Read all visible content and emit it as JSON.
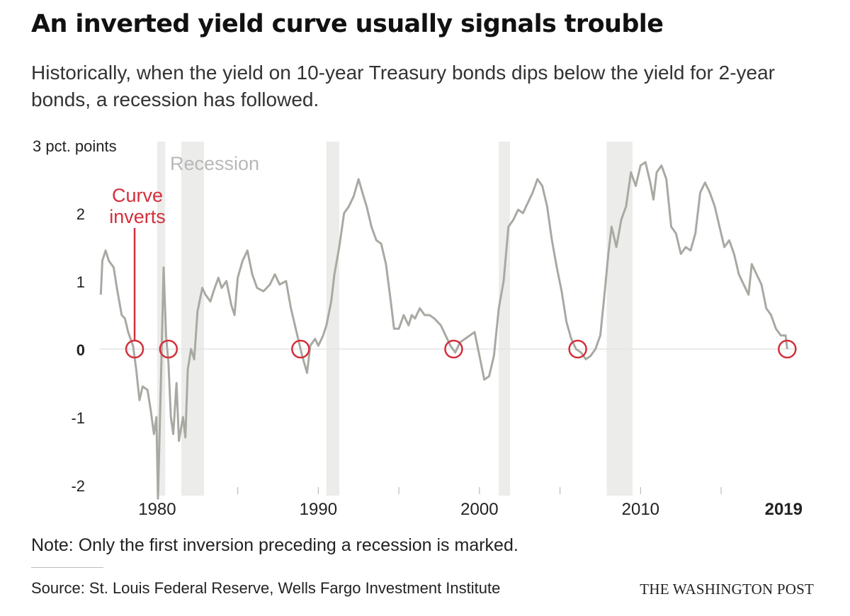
{
  "header": {
    "title": "An inverted yield curve usually signals trouble",
    "subtitle": "Historically, when the yield on 10-year Treasury bonds dips below the yield for 2-year bonds, a recession has followed."
  },
  "footer": {
    "note": "Note: Only the first inversion preceding a recession is marked.",
    "source": "Source: St. Louis Federal Reserve, Wells Fargo Investment Institute",
    "credit": "THE WASHINGTON POST"
  },
  "colors": {
    "line": "#a9a9a3",
    "recession": "#ececea",
    "accent": "#d3303b",
    "zero": "#e4e4e4"
  },
  "chart_data": {
    "type": "line",
    "title": "An inverted yield curve usually signals trouble",
    "subtitle": "Historically, when the yield on 10-year Treasury bonds dips below the yield for 2-year bonds, a recession has followed.",
    "ylabel": "3 pct. points",
    "xlim": [
      1976.4,
      2019.7
    ],
    "ylim": [
      -2.2,
      3
    ],
    "y_ticks": [
      {
        "value": 3,
        "label": "3 pct. points",
        "bold": false
      },
      {
        "value": 2,
        "label": "2",
        "bold": false
      },
      {
        "value": 1,
        "label": "1",
        "bold": false
      },
      {
        "value": 0,
        "label": "0",
        "bold": true
      },
      {
        "value": -1,
        "label": "-1",
        "bold": false
      },
      {
        "value": -2,
        "label": "-2",
        "bold": false
      }
    ],
    "x_labels": [
      {
        "value": 1980,
        "label": "1980",
        "bold": false
      },
      {
        "value": 1990,
        "label": "1990",
        "bold": false
      },
      {
        "value": 2000,
        "label": "2000",
        "bold": false
      },
      {
        "value": 2010,
        "label": "2010",
        "bold": false
      },
      {
        "value": 2019,
        "label": "2019",
        "bold": true
      }
    ],
    "x_minor_ticks": [
      1985,
      1995,
      2005,
      2015
    ],
    "recession_label": "Recession",
    "recessions": [
      [
        1980.0,
        1980.5
      ],
      [
        1981.5,
        1982.9
      ],
      [
        1990.5,
        1991.3
      ],
      [
        2001.2,
        2001.9
      ],
      [
        2007.9,
        2009.5
      ]
    ],
    "inversion_label": "Curve inverts",
    "inversions": [
      1978.6,
      1980.7,
      1988.9,
      1998.4,
      2006.1,
      2019.1
    ],
    "series": [
      {
        "values": [
          [
            1976.5,
            0.8
          ],
          [
            1976.6,
            1.3
          ],
          [
            1976.8,
            1.45
          ],
          [
            1977.0,
            1.3
          ],
          [
            1977.3,
            1.2
          ],
          [
            1977.5,
            0.9
          ],
          [
            1977.8,
            0.5
          ],
          [
            1978.0,
            0.45
          ],
          [
            1978.2,
            0.25
          ],
          [
            1978.5,
            0.05
          ],
          [
            1978.7,
            -0.3
          ],
          [
            1978.9,
            -0.75
          ],
          [
            1979.1,
            -0.55
          ],
          [
            1979.4,
            -0.6
          ],
          [
            1979.6,
            -0.9
          ],
          [
            1979.8,
            -1.25
          ],
          [
            1979.95,
            -1.0
          ],
          [
            1980.05,
            -2.2
          ],
          [
            1980.25,
            -0.3
          ],
          [
            1980.4,
            1.2
          ],
          [
            1980.55,
            0.2
          ],
          [
            1980.7,
            -0.2
          ],
          [
            1980.85,
            -1.0
          ],
          [
            1981.0,
            -1.25
          ],
          [
            1981.2,
            -0.5
          ],
          [
            1981.35,
            -1.35
          ],
          [
            1981.6,
            -1.0
          ],
          [
            1981.75,
            -1.3
          ],
          [
            1981.9,
            -0.3
          ],
          [
            1982.1,
            0.0
          ],
          [
            1982.3,
            -0.15
          ],
          [
            1982.5,
            0.55
          ],
          [
            1982.8,
            0.9
          ],
          [
            1983.0,
            0.8
          ],
          [
            1983.3,
            0.7
          ],
          [
            1983.5,
            0.85
          ],
          [
            1983.8,
            1.05
          ],
          [
            1984.0,
            0.9
          ],
          [
            1984.3,
            1.0
          ],
          [
            1984.6,
            0.65
          ],
          [
            1984.8,
            0.5
          ],
          [
            1985.0,
            1.05
          ],
          [
            1985.3,
            1.3
          ],
          [
            1985.6,
            1.45
          ],
          [
            1985.9,
            1.1
          ],
          [
            1986.2,
            0.9
          ],
          [
            1986.6,
            0.85
          ],
          [
            1987.0,
            0.95
          ],
          [
            1987.3,
            1.1
          ],
          [
            1987.6,
            0.95
          ],
          [
            1988.0,
            1.0
          ],
          [
            1988.3,
            0.6
          ],
          [
            1988.6,
            0.3
          ],
          [
            1989.0,
            -0.1
          ],
          [
            1989.3,
            -0.35
          ],
          [
            1989.5,
            0.05
          ],
          [
            1989.8,
            0.15
          ],
          [
            1990.0,
            0.05
          ],
          [
            1990.3,
            0.2
          ],
          [
            1990.5,
            0.35
          ],
          [
            1990.8,
            0.7
          ],
          [
            1991.0,
            1.1
          ],
          [
            1991.3,
            1.5
          ],
          [
            1991.6,
            2.0
          ],
          [
            1991.9,
            2.1
          ],
          [
            1992.2,
            2.25
          ],
          [
            1992.5,
            2.5
          ],
          [
            1992.8,
            2.25
          ],
          [
            1993.0,
            2.1
          ],
          [
            1993.3,
            1.8
          ],
          [
            1993.6,
            1.6
          ],
          [
            1993.9,
            1.55
          ],
          [
            1994.2,
            1.25
          ],
          [
            1994.5,
            0.7
          ],
          [
            1994.7,
            0.3
          ],
          [
            1995.0,
            0.3
          ],
          [
            1995.3,
            0.5
          ],
          [
            1995.6,
            0.35
          ],
          [
            1995.8,
            0.5
          ],
          [
            1996.0,
            0.45
          ],
          [
            1996.3,
            0.6
          ],
          [
            1996.6,
            0.5
          ],
          [
            1996.9,
            0.5
          ],
          [
            1997.2,
            0.45
          ],
          [
            1997.6,
            0.35
          ],
          [
            1997.9,
            0.2
          ],
          [
            1998.2,
            0.05
          ],
          [
            1998.5,
            -0.05
          ],
          [
            1998.8,
            0.1
          ],
          [
            1999.1,
            0.15
          ],
          [
            1999.4,
            0.2
          ],
          [
            1999.7,
            0.25
          ],
          [
            2000.0,
            -0.1
          ],
          [
            2000.3,
            -0.45
          ],
          [
            2000.6,
            -0.4
          ],
          [
            2000.9,
            -0.1
          ],
          [
            2001.2,
            0.6
          ],
          [
            2001.5,
            1.0
          ],
          [
            2001.8,
            1.8
          ],
          [
            2002.1,
            1.9
          ],
          [
            2002.4,
            2.05
          ],
          [
            2002.7,
            2.0
          ],
          [
            2003.0,
            2.15
          ],
          [
            2003.3,
            2.3
          ],
          [
            2003.6,
            2.5
          ],
          [
            2003.9,
            2.4
          ],
          [
            2004.2,
            2.1
          ],
          [
            2004.5,
            1.6
          ],
          [
            2004.8,
            1.2
          ],
          [
            2005.1,
            0.85
          ],
          [
            2005.4,
            0.4
          ],
          [
            2005.7,
            0.15
          ],
          [
            2006.0,
            0.0
          ],
          [
            2006.3,
            -0.05
          ],
          [
            2006.6,
            -0.15
          ],
          [
            2006.9,
            -0.1
          ],
          [
            2007.2,
            0.0
          ],
          [
            2007.5,
            0.2
          ],
          [
            2007.8,
            0.9
          ],
          [
            2008.0,
            1.4
          ],
          [
            2008.2,
            1.8
          ],
          [
            2008.5,
            1.5
          ],
          [
            2008.8,
            1.9
          ],
          [
            2009.1,
            2.1
          ],
          [
            2009.4,
            2.6
          ],
          [
            2009.7,
            2.4
          ],
          [
            2010.0,
            2.7
          ],
          [
            2010.3,
            2.75
          ],
          [
            2010.6,
            2.45
          ],
          [
            2010.8,
            2.2
          ],
          [
            2011.0,
            2.6
          ],
          [
            2011.3,
            2.7
          ],
          [
            2011.6,
            2.5
          ],
          [
            2011.9,
            1.8
          ],
          [
            2012.2,
            1.7
          ],
          [
            2012.5,
            1.4
          ],
          [
            2012.8,
            1.5
          ],
          [
            2013.1,
            1.45
          ],
          [
            2013.4,
            1.7
          ],
          [
            2013.7,
            2.3
          ],
          [
            2014.0,
            2.45
          ],
          [
            2014.3,
            2.3
          ],
          [
            2014.6,
            2.1
          ],
          [
            2014.9,
            1.8
          ],
          [
            2015.2,
            1.5
          ],
          [
            2015.5,
            1.6
          ],
          [
            2015.8,
            1.4
          ],
          [
            2016.1,
            1.1
          ],
          [
            2016.4,
            0.95
          ],
          [
            2016.7,
            0.8
          ],
          [
            2016.9,
            1.25
          ],
          [
            2017.2,
            1.1
          ],
          [
            2017.5,
            0.95
          ],
          [
            2017.8,
            0.6
          ],
          [
            2018.1,
            0.5
          ],
          [
            2018.4,
            0.3
          ],
          [
            2018.7,
            0.2
          ],
          [
            2019.0,
            0.2
          ],
          [
            2019.1,
            0.0
          ]
        ]
      }
    ]
  }
}
